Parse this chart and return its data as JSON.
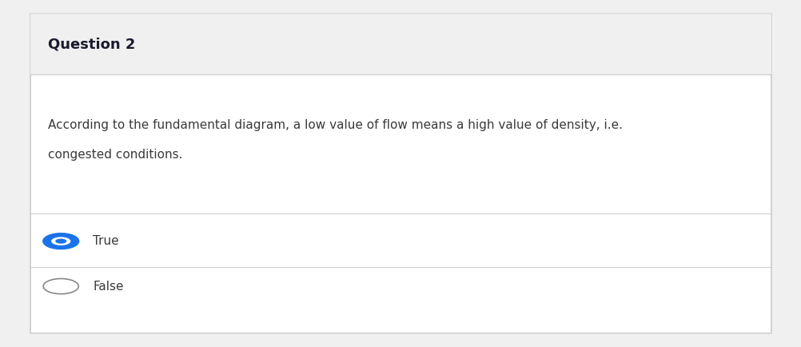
{
  "page_bg": "#f0f0f0",
  "card_bg": "#ffffff",
  "card_border_color": "#cccccc",
  "header_bg": "#f0f0f0",
  "header_text": "Question 2",
  "header_text_color": "#1a1a2e",
  "header_font_size": 13,
  "header_font_weight": "bold",
  "body_text_line1": "According to the fundamental diagram, a low value of flow means a high value of density, i.e.",
  "body_text_line2": "congested conditions.",
  "body_text_color": "#3a3a3a",
  "body_font_size": 11,
  "divider_color": "#d0d0d0",
  "options": [
    "True",
    "False"
  ],
  "selected_option": 0,
  "radio_selected_fill": "#1a73e8",
  "radio_selected_border": "#1a73e8",
  "radio_unselected_fill": "#ffffff",
  "radio_unselected_border": "#888888",
  "option_text_color": "#3a3a3a",
  "option_font_size": 11
}
